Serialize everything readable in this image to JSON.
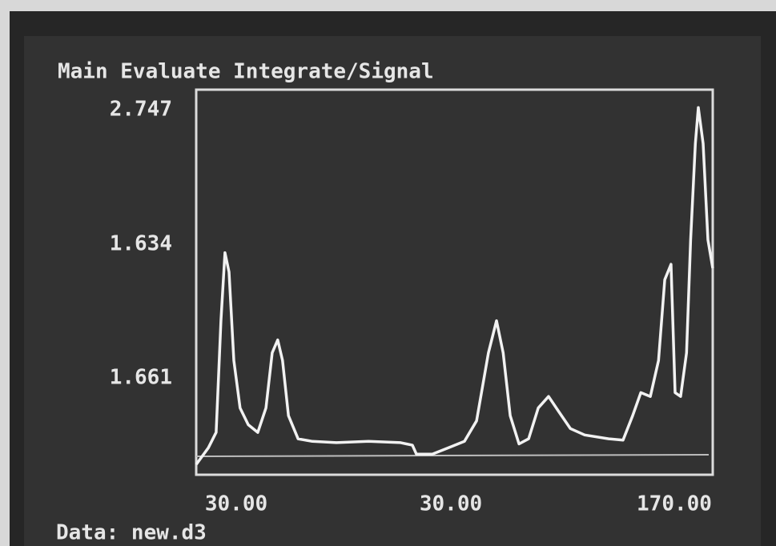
{
  "menu": "Main Evaluate Integrate/Signal",
  "plot": {
    "y_labels": [
      "2.747",
      "1.634",
      "1.661"
    ],
    "x_labels": [
      "30.00",
      "30.00",
      "170.00"
    ],
    "xlim": [
      30,
      170
    ],
    "ylim": [
      0,
      3
    ],
    "trace": {
      "x": [
        30.0,
        33.3,
        35.4,
        36.7,
        37.8,
        38.9,
        40.2,
        41.9,
        44.1,
        46.7,
        48.9,
        50.6,
        52.1,
        53.4,
        55.0,
        57.6,
        61.5,
        68.0,
        76.7,
        85.4,
        88.6,
        89.7,
        94.0,
        98.4,
        102.7,
        106.0,
        109.2,
        111.4,
        113.2,
        115.1,
        117.5,
        120.1,
        122.7,
        125.5,
        128.3,
        131.4,
        135.3,
        141.8,
        145.7,
        148.3,
        150.5,
        153.1,
        155.3,
        157.0,
        158.7,
        159.8,
        161.3,
        162.9,
        164.0,
        165.3,
        166.1,
        167.4,
        168.7,
        170.0
      ],
      "y": [
        0.08,
        0.21,
        0.33,
        1.2,
        1.73,
        1.58,
        0.89,
        0.52,
        0.39,
        0.33,
        0.52,
        0.95,
        1.05,
        0.89,
        0.46,
        0.28,
        0.26,
        0.25,
        0.26,
        0.25,
        0.23,
        0.16,
        0.16,
        0.21,
        0.26,
        0.42,
        0.95,
        1.2,
        0.95,
        0.46,
        0.24,
        0.28,
        0.52,
        0.61,
        0.49,
        0.36,
        0.31,
        0.28,
        0.27,
        0.46,
        0.64,
        0.61,
        0.89,
        1.52,
        1.64,
        0.64,
        0.61,
        0.95,
        1.83,
        2.58,
        2.86,
        2.58,
        1.83,
        1.61
      ]
    }
  },
  "footer": "Data: new.d3"
}
